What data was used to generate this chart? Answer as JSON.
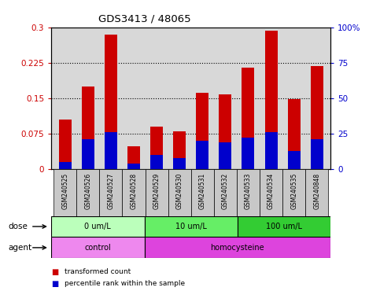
{
  "title": "GDS3413 / 48065",
  "samples": [
    "GSM240525",
    "GSM240526",
    "GSM240527",
    "GSM240528",
    "GSM240529",
    "GSM240530",
    "GSM240531",
    "GSM240532",
    "GSM240533",
    "GSM240534",
    "GSM240535",
    "GSM240848"
  ],
  "transformed_count": [
    0.105,
    0.175,
    0.285,
    0.048,
    0.09,
    0.08,
    0.162,
    0.158,
    0.215,
    0.292,
    0.148,
    0.218
  ],
  "percentile_rank_pct": [
    5,
    21,
    26,
    4,
    10,
    8,
    20,
    19,
    22,
    26,
    13,
    21
  ],
  "ylim_left": [
    0,
    0.3
  ],
  "ylim_right": [
    0,
    100
  ],
  "yticks_left": [
    0,
    0.075,
    0.15,
    0.225,
    0.3
  ],
  "ytick_labels_left": [
    "0",
    "0.075",
    "0.15",
    "0.225",
    "0.3"
  ],
  "yticks_right": [
    0,
    25,
    50,
    75,
    100
  ],
  "ytick_labels_right": [
    "0",
    "25",
    "50",
    "75",
    "100%"
  ],
  "bar_color_red": "#cc0000",
  "bar_color_blue": "#0000cc",
  "dose_groups": [
    {
      "label": "0 um/L",
      "start": 0,
      "end": 4,
      "color": "#bbffbb"
    },
    {
      "label": "10 um/L",
      "start": 4,
      "end": 8,
      "color": "#66ee66"
    },
    {
      "label": "100 um/L",
      "start": 8,
      "end": 12,
      "color": "#33cc33"
    }
  ],
  "agent_groups": [
    {
      "label": "control",
      "start": 0,
      "end": 4,
      "color": "#ee88ee"
    },
    {
      "label": "homocysteine",
      "start": 4,
      "end": 12,
      "color": "#dd44dd"
    }
  ],
  "dose_label": "dose",
  "agent_label": "agent",
  "legend_items": [
    {
      "label": "transformed count",
      "color": "#cc0000"
    },
    {
      "label": "percentile rank within the sample",
      "color": "#0000cc"
    }
  ],
  "tick_label_color_left": "#cc0000",
  "tick_label_color_right": "#0000cc",
  "bar_width": 0.55,
  "bg_color": "#ffffff",
  "plot_bg_color": "#d8d8d8",
  "xlabel_bg_color": "#c8c8c8"
}
